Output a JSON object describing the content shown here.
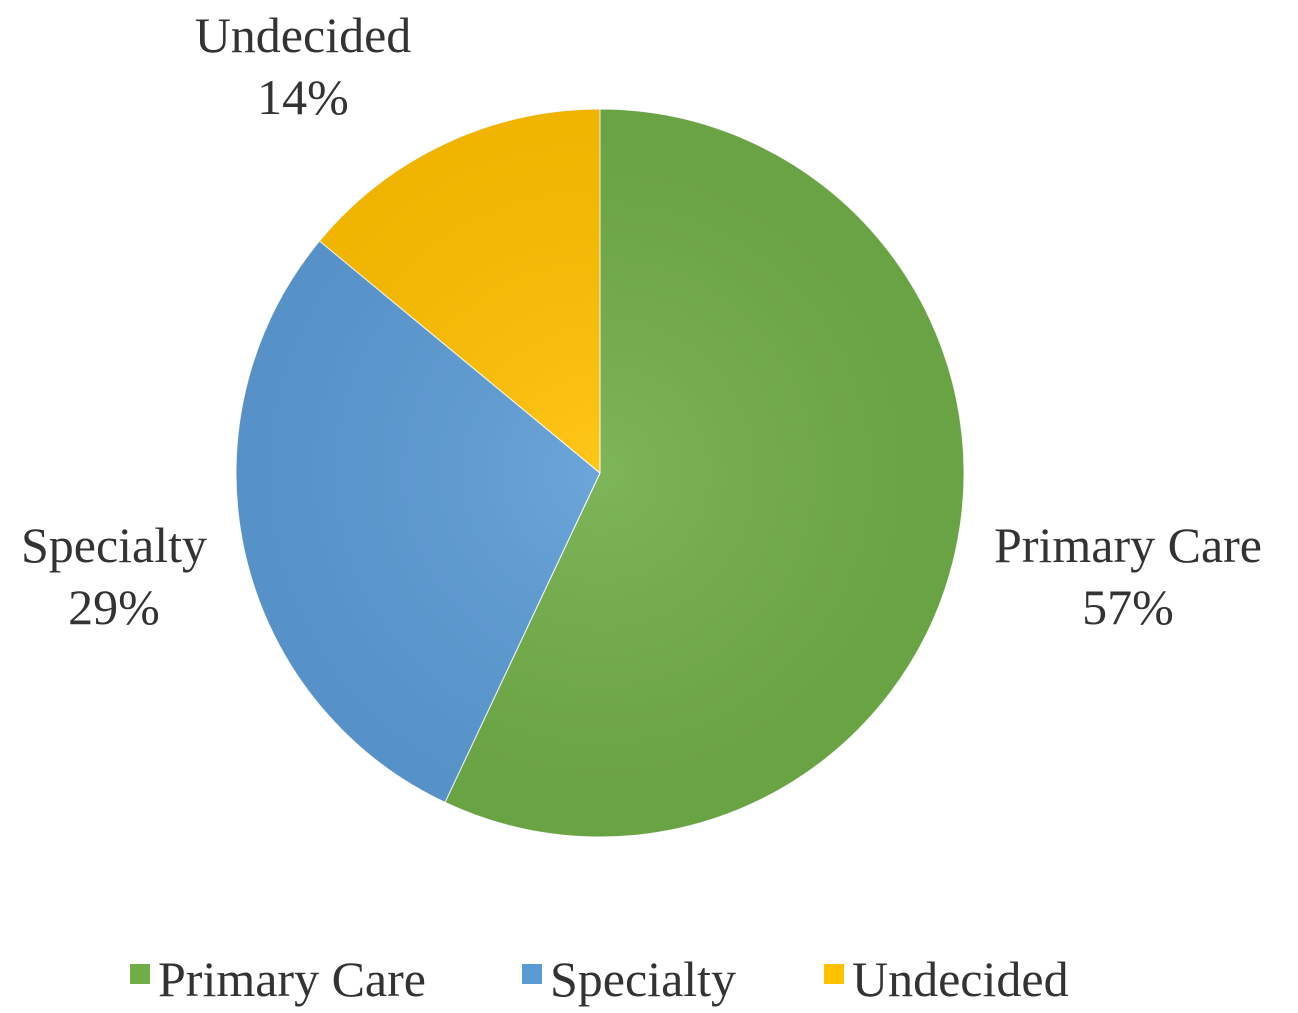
{
  "chart_data": {
    "type": "pie",
    "start_angle_deg": 0,
    "direction": "clockwise",
    "slices": [
      {
        "name": "Primary Care",
        "value": 57,
        "label": "57%",
        "color": "#70AD47"
      },
      {
        "name": "Specialty",
        "value": 29,
        "label": "29%",
        "color": "#5B9BD5"
      },
      {
        "name": "Undecided",
        "value": 14,
        "label": "14%",
        "color": "#FFC000"
      }
    ],
    "legend": {
      "placement": "bottom",
      "entries": [
        "Primary Care",
        "Specialty",
        "Undecided"
      ]
    }
  }
}
